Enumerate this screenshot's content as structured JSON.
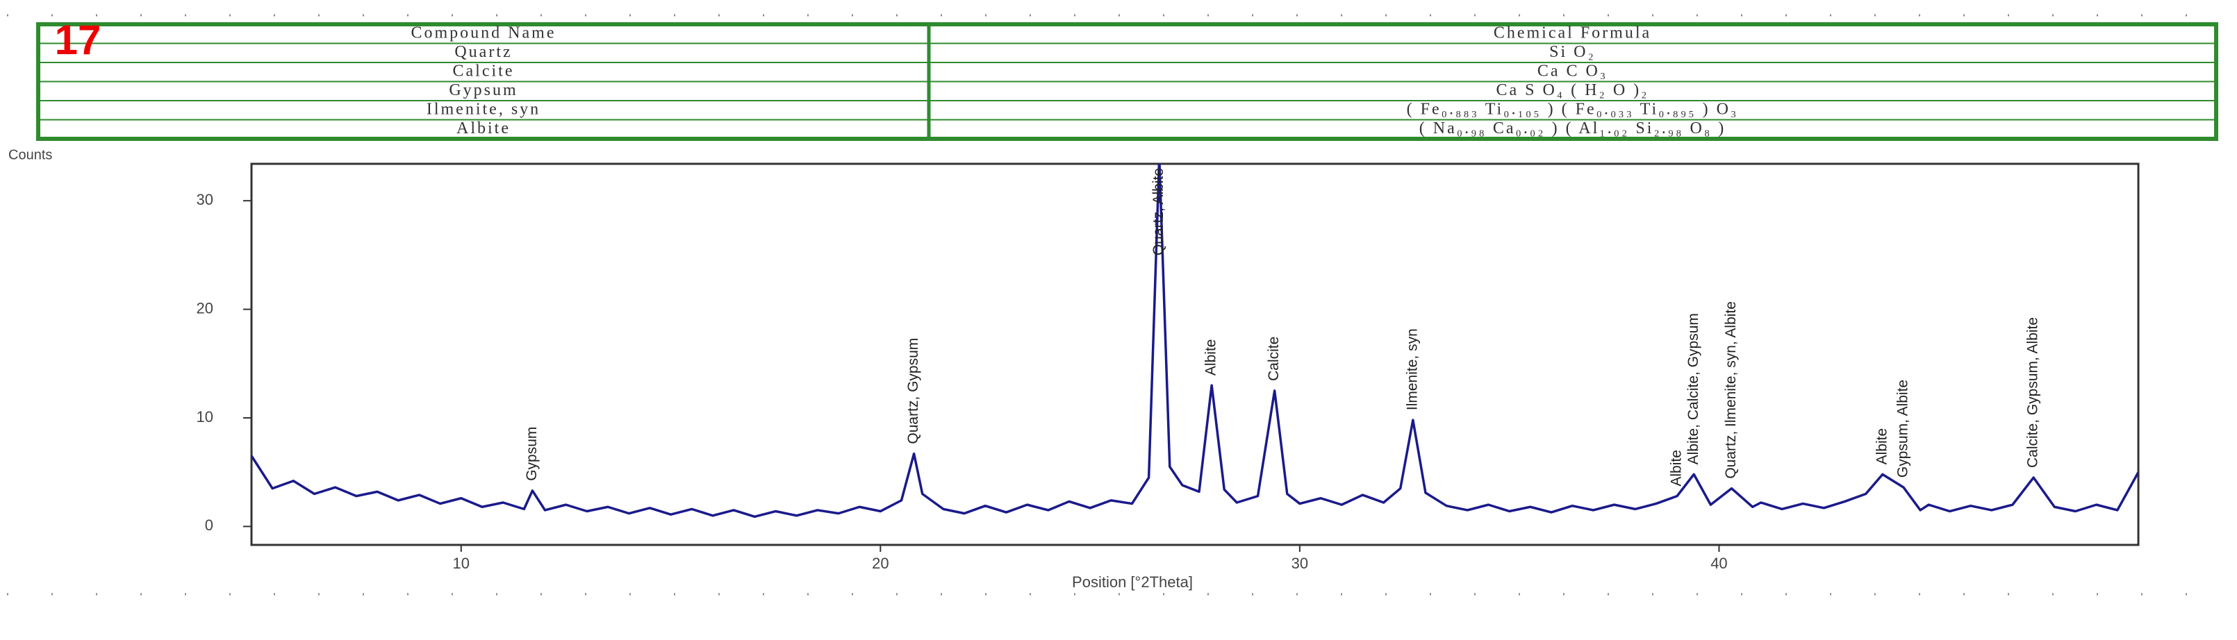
{
  "label": "17",
  "table": {
    "header": [
      "Compound Name",
      "Chemical Formula"
    ],
    "rows": [
      [
        "Quartz",
        "Si O₂"
      ],
      [
        "Calcite",
        "Ca C O₃"
      ],
      [
        "Gypsum",
        "Ca S O₄ ( H₂ O )₂"
      ],
      [
        "Ilmenite, syn",
        "( Fe₀.₈₈₃ Ti₀.₁₀₅ ) ( Fe₀.₀₃₃ Ti₀.₈₉₅ ) O₃"
      ],
      [
        "Albite",
        "( Na₀.₉₈ Ca₀.₀₂ ) ( Al₁.₀₂ Si₂.₉₈ O₈ )"
      ]
    ]
  },
  "chart_data": {
    "type": "line",
    "y_label": "Counts",
    "x_label": "Position [°2Theta]",
    "color": "#1a1a8c",
    "x": [
      5,
      5.5,
      6,
      6.5,
      7,
      7.5,
      8,
      8.5,
      9,
      9.5,
      10,
      10.5,
      11,
      11.5,
      11.7,
      12,
      12.5,
      13,
      13.5,
      14,
      14.5,
      15,
      15.5,
      16,
      16.5,
      17,
      17.5,
      18,
      18.5,
      19,
      19.5,
      20,
      20.5,
      20.8,
      21,
      21.5,
      22,
      22.5,
      23,
      23.5,
      24,
      24.5,
      25,
      25.5,
      26,
      26.4,
      26.65,
      26.9,
      27.2,
      27.6,
      27.9,
      28.2,
      28.5,
      29,
      29.4,
      29.7,
      30,
      30.5,
      31,
      31.5,
      32,
      32.4,
      32.7,
      33,
      33.5,
      34,
      34.5,
      35,
      35.5,
      36,
      36.5,
      37,
      37.5,
      38,
      38.5,
      39,
      39.4,
      39.8,
      40.3,
      40.8,
      41,
      41.5,
      42,
      42.5,
      43,
      43.5,
      43.9,
      44.4,
      44.8,
      45,
      45.5,
      46,
      46.5,
      47,
      47.5,
      48,
      48.5,
      49,
      49.5,
      50
    ],
    "values": [
      6.5,
      3.5,
      4.2,
      3.0,
      3.6,
      2.8,
      3.2,
      2.4,
      2.9,
      2.1,
      2.6,
      1.8,
      2.2,
      1.6,
      3.3,
      1.5,
      2.0,
      1.4,
      1.8,
      1.2,
      1.7,
      1.1,
      1.6,
      1.0,
      1.5,
      0.9,
      1.4,
      1.0,
      1.5,
      1.2,
      1.8,
      1.4,
      2.4,
      6.7,
      3.0,
      1.6,
      1.2,
      1.9,
      1.3,
      2.0,
      1.5,
      2.3,
      1.7,
      2.4,
      2.1,
      4.5,
      34,
      5.5,
      3.8,
      3.2,
      13,
      3.4,
      2.2,
      2.8,
      12.5,
      3.0,
      2.1,
      2.6,
      2.0,
      2.9,
      2.2,
      3.5,
      9.8,
      3.1,
      1.9,
      1.5,
      2.0,
      1.4,
      1.8,
      1.3,
      1.9,
      1.5,
      2.0,
      1.6,
      2.1,
      2.8,
      4.8,
      2.0,
      3.5,
      1.8,
      2.2,
      1.6,
      2.1,
      1.7,
      2.3,
      3.0,
      4.8,
      3.6,
      1.5,
      2.0,
      1.4,
      1.9,
      1.5,
      2.0,
      4.5,
      1.8,
      1.4,
      2.0,
      1.5,
      5.0
    ],
    "xlim": [
      5,
      50
    ],
    "ylim": [
      -1.7,
      33.4
    ],
    "xticks": [
      10,
      20,
      30,
      40
    ],
    "yticks": [
      0,
      10,
      20,
      30
    ],
    "annotations": [
      {
        "x": 11.7,
        "y": 3.3,
        "text": "Gypsum"
      },
      {
        "x": 20.8,
        "y": 6.7,
        "text": "Quartz, Gypsum"
      },
      {
        "x": 26.65,
        "y": 34,
        "text": "Quartz, Albite"
      },
      {
        "x": 27.9,
        "y": 13,
        "text": "Albite"
      },
      {
        "x": 29.4,
        "y": 12.5,
        "text": "Calcite"
      },
      {
        "x": 32.7,
        "y": 9.8,
        "text": "Ilmenite, syn"
      },
      {
        "x": 39.0,
        "y": 2.8,
        "text": "Albite"
      },
      {
        "x": 39.4,
        "y": 4.8,
        "text": "Albite, Calcite, Gypsum"
      },
      {
        "x": 40.3,
        "y": 3.5,
        "text": "Quartz, Ilmenite, syn, Albite"
      },
      {
        "x": 43.9,
        "y": 4.8,
        "text": "Albite"
      },
      {
        "x": 44.4,
        "y": 3.6,
        "text": "Gypsum, Albite"
      },
      {
        "x": 47.5,
        "y": 4.5,
        "text": "Calcite, Gypsum, Albite"
      }
    ]
  }
}
